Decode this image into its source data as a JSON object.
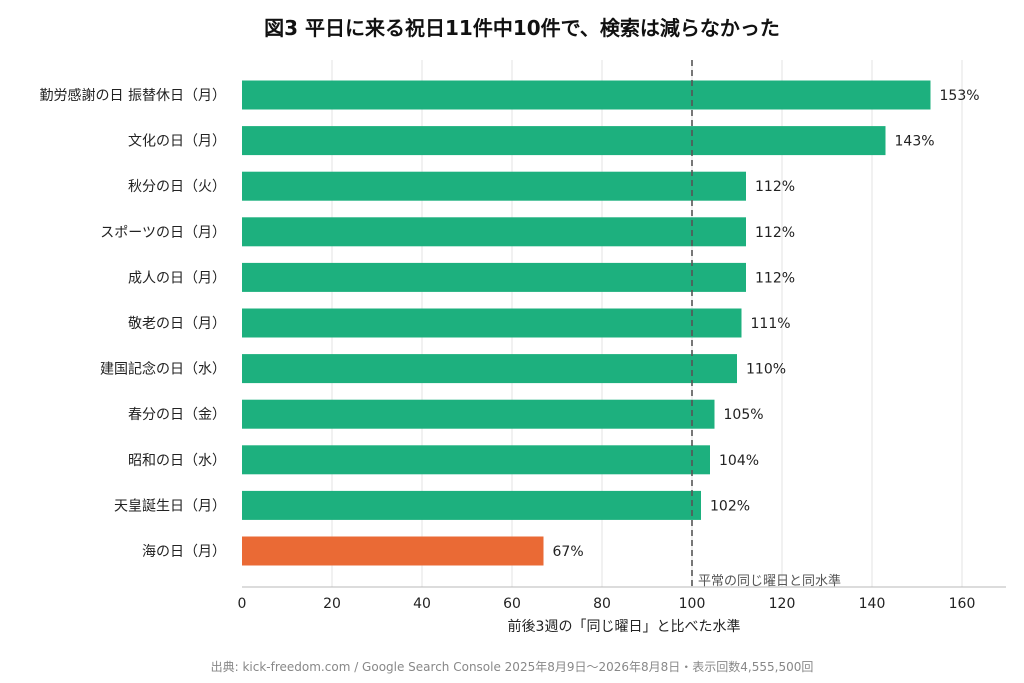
{
  "chart_data": {
    "type": "bar",
    "orientation": "horizontal",
    "title": "図3 平日に来る祝日11件中10件で、検索は減らなかった",
    "xlabel": "前後3週の「同じ曜日」と比べた水準",
    "ylabel": "",
    "xlim": [
      0,
      170
    ],
    "xticks": [
      0,
      20,
      40,
      60,
      80,
      100,
      120,
      140,
      160
    ],
    "grid": "vertical",
    "categories": [
      "勤労感謝の日 振替休日（月）",
      "文化の日（月）",
      "秋分の日（火）",
      "スポーツの日（月）",
      "成人の日（月）",
      "敬老の日（月）",
      "建国記念の日（水）",
      "春分の日（金）",
      "昭和の日（水）",
      "天皇誕生日（月）",
      "海の日（月）"
    ],
    "values": [
      153,
      143,
      112,
      112,
      112,
      111,
      110,
      105,
      104,
      102,
      67
    ],
    "value_labels": [
      "153%",
      "143%",
      "112%",
      "112%",
      "112%",
      "111%",
      "110%",
      "105%",
      "104%",
      "102%",
      "67%"
    ],
    "colors": {
      "default": "#1db07e",
      "highlight": "#ea6a35",
      "reference_line": "#555555"
    },
    "highlight_index": 10,
    "reference_line": {
      "value": 100,
      "label": "平常の同じ曜日と同水準"
    },
    "source": "出典: kick-freedom.com / Google Search Console 2025年8月9日〜2026年8月8日・表示回数4,555,500回"
  }
}
